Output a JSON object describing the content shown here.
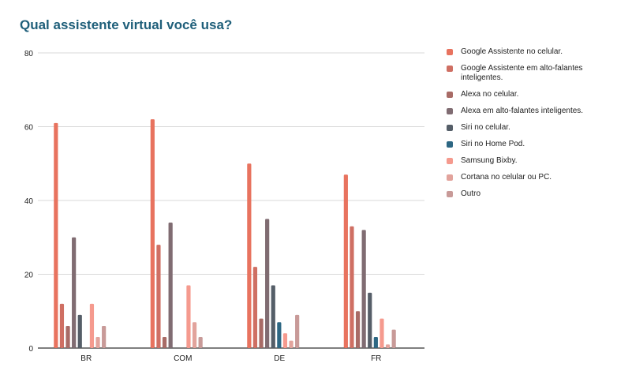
{
  "chart_data": {
    "type": "bar",
    "title": "Qual assistente virtual você usa?",
    "categories": [
      "BR",
      "COM",
      "DE",
      "FR"
    ],
    "ylim": [
      0,
      80
    ],
    "yticks": [
      0,
      20,
      40,
      60,
      80
    ],
    "grid": true,
    "legend_position": "right",
    "series": [
      {
        "name": "Google Assistente no celular.",
        "color": "#e8735f",
        "values": [
          61,
          62,
          50,
          47
        ]
      },
      {
        "name": "Google Assistente em alto-falantes inteligentes.",
        "color": "#cf6f63",
        "values": [
          12,
          28,
          22,
          33
        ]
      },
      {
        "name": "Alexa no celular.",
        "color": "#a86b66",
        "values": [
          6,
          3,
          8,
          10
        ]
      },
      {
        "name": "Alexa em alto-falantes inteligentes.",
        "color": "#806c72",
        "values": [
          30,
          34,
          35,
          32
        ]
      },
      {
        "name": "Siri no celular.",
        "color": "#555e68",
        "values": [
          9,
          0,
          17,
          15
        ]
      },
      {
        "name": "Siri no Home Pod.",
        "color": "#2d6783",
        "values": [
          0,
          0,
          7,
          3
        ]
      },
      {
        "name": "Samsung Bixby.",
        "color": "#f59a8e",
        "values": [
          12,
          17,
          4,
          8
        ]
      },
      {
        "name": "Cortana no celular ou PC.",
        "color": "#e2a39c",
        "values": [
          3,
          7,
          2,
          1
        ]
      },
      {
        "name": "Outro",
        "color": "#c89a98",
        "values": [
          6,
          3,
          9,
          5
        ]
      }
    ]
  }
}
